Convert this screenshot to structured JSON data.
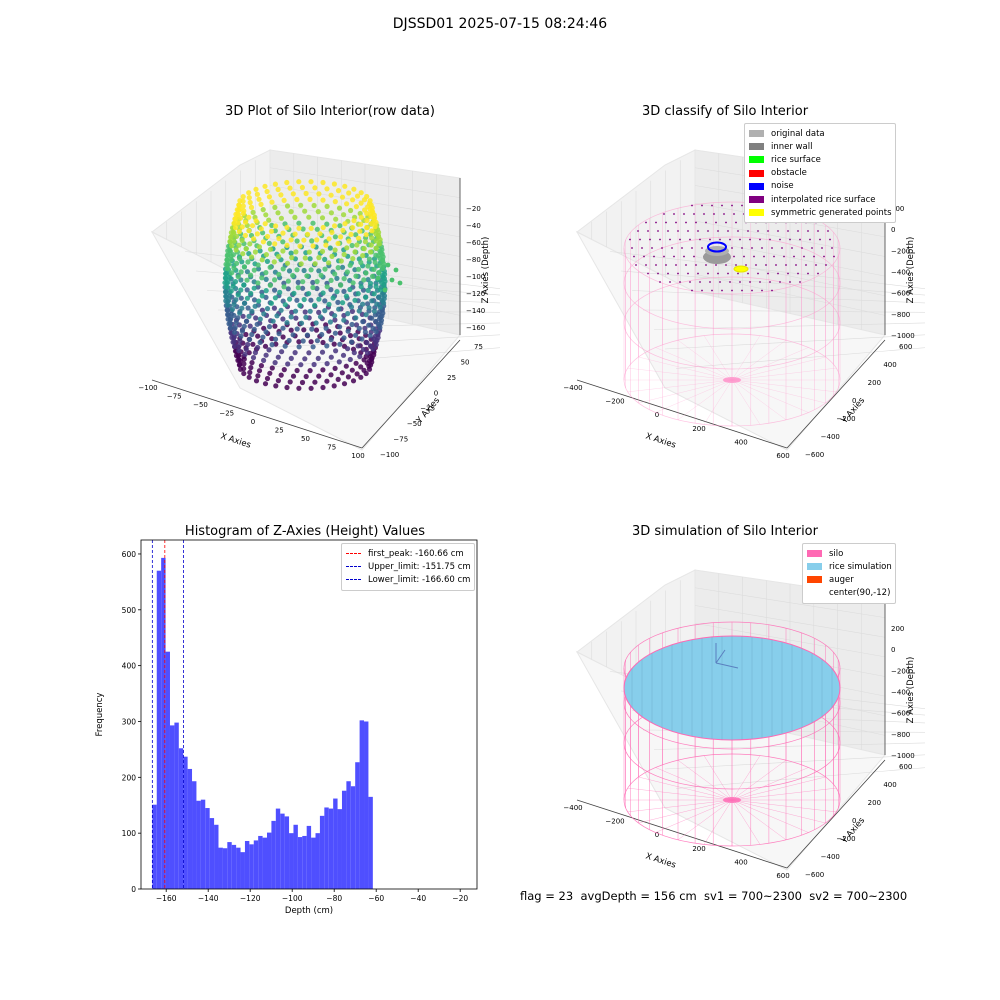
{
  "figure": {
    "suptitle": "DJSSD01 2025-07-15 08:24:46",
    "footer": "flag = 23  avgDepth = 156 cm  sv1 = 700~2300  sv2 = 700~2300"
  },
  "chart_data": [
    {
      "type": "scatter",
      "projection": "3d",
      "title": "3D Plot of Silo Interior(row data)",
      "xlabel": "X Axies",
      "ylabel": "Y Axies",
      "zlabel": "Z Axies (Depth)",
      "xticks": [
        "−100",
        "−75",
        "−50",
        "−25",
        "0",
        "25",
        "50",
        "75",
        "100"
      ],
      "yticks": [
        "−100",
        "−75",
        "−50",
        "−25",
        "0",
        "25",
        "50",
        "75"
      ],
      "zticks": [
        "−20",
        "−40",
        "−60",
        "−80",
        "−100",
        "−120",
        "−140",
        "−160"
      ],
      "xlim": [
        -100,
        100
      ],
      "ylim": [
        -100,
        75
      ],
      "zlim": [
        -170,
        -20
      ],
      "colormap": "viridis",
      "grid": true
    },
    {
      "type": "scatter",
      "projection": "3d",
      "title": "3D classify of Silo Interior",
      "xlabel": "X Axies",
      "ylabel": "Y Axies",
      "zlabel": "Z Axies (Depth)",
      "xticks": [
        "−400",
        "−200",
        "0",
        "200",
        "400",
        "600"
      ],
      "yticks": [
        "−600",
        "−400",
        "−200",
        "0",
        "200",
        "400",
        "600"
      ],
      "zticks": [
        "200",
        "0",
        "−200",
        "−400",
        "−600",
        "−800",
        "−1000"
      ],
      "legend_position": "top-right",
      "legend": [
        {
          "label": "original data",
          "color": "#b0b0b0"
        },
        {
          "label": "inner wall",
          "color": "#808080"
        },
        {
          "label": "rice surface",
          "color": "#00ff00"
        },
        {
          "label": "obstacle",
          "color": "#ff0000"
        },
        {
          "label": "noise",
          "color": "#0000ff"
        },
        {
          "label": "interpolated rice surface",
          "color": "#800080"
        },
        {
          "label": "symmetric generated points",
          "color": "#ffff00"
        }
      ],
      "grid": true
    },
    {
      "type": "bar",
      "title": "Histogram of Z-Axies (Height) Values",
      "xlabel": "Depth (cm)",
      "ylabel": "Frequency",
      "xlim": [
        -172,
        -12
      ],
      "ylim": [
        0,
        625
      ],
      "xticks": [
        -160,
        -140,
        -120,
        -100,
        -80,
        -60,
        -40,
        -20
      ],
      "yticks": [
        0,
        100,
        200,
        300,
        400,
        500,
        600
      ],
      "bin_start": -166.6,
      "bin_width": 2.1,
      "values": [
        151,
        570,
        593,
        425,
        293,
        298,
        252,
        237,
        215,
        193,
        158,
        160,
        145,
        127,
        115,
        74,
        73,
        84,
        79,
        74,
        66,
        86,
        80,
        87,
        95,
        92,
        101,
        122,
        144,
        135,
        130,
        100,
        115,
        93,
        95,
        113,
        92,
        100,
        131,
        146,
        144,
        162,
        143,
        176,
        193,
        184,
        227,
        302,
        300,
        165
      ],
      "bar_color": "#4b4bff",
      "vlines": [
        {
          "label": "first_peak: -160.66 cm",
          "x": -160.66,
          "color": "#ff0000"
        },
        {
          "label": "Upper_limit: -151.75 cm",
          "x": -151.75,
          "color": "#0000cc"
        },
        {
          "label": "Lower_limit: -166.60 cm",
          "x": -166.6,
          "color": "#0000cc"
        }
      ],
      "legend_position": "top-right"
    },
    {
      "type": "scatter",
      "projection": "3d",
      "title": "3D simulation of Silo Interior",
      "xlabel": "X Axies",
      "ylabel": "Y Axies",
      "zlabel": "Z Axies (Depth)",
      "xticks": [
        "−400",
        "−200",
        "0",
        "200",
        "400",
        "600"
      ],
      "yticks": [
        "−600",
        "−400",
        "−200",
        "0",
        "200",
        "400",
        "600"
      ],
      "zticks": [
        "200",
        "0",
        "−200",
        "−400",
        "−600",
        "−800",
        "−1000"
      ],
      "legend_position": "top-right",
      "legend": [
        {
          "label": "silo",
          "color": "#ff69b4"
        },
        {
          "label": "rice simulation",
          "color": "#87ceeb"
        },
        {
          "label": "auger",
          "color": "#ff4500"
        },
        {
          "label": "center(90,-12)",
          "color": "#ffffff"
        }
      ],
      "grid": true
    }
  ]
}
